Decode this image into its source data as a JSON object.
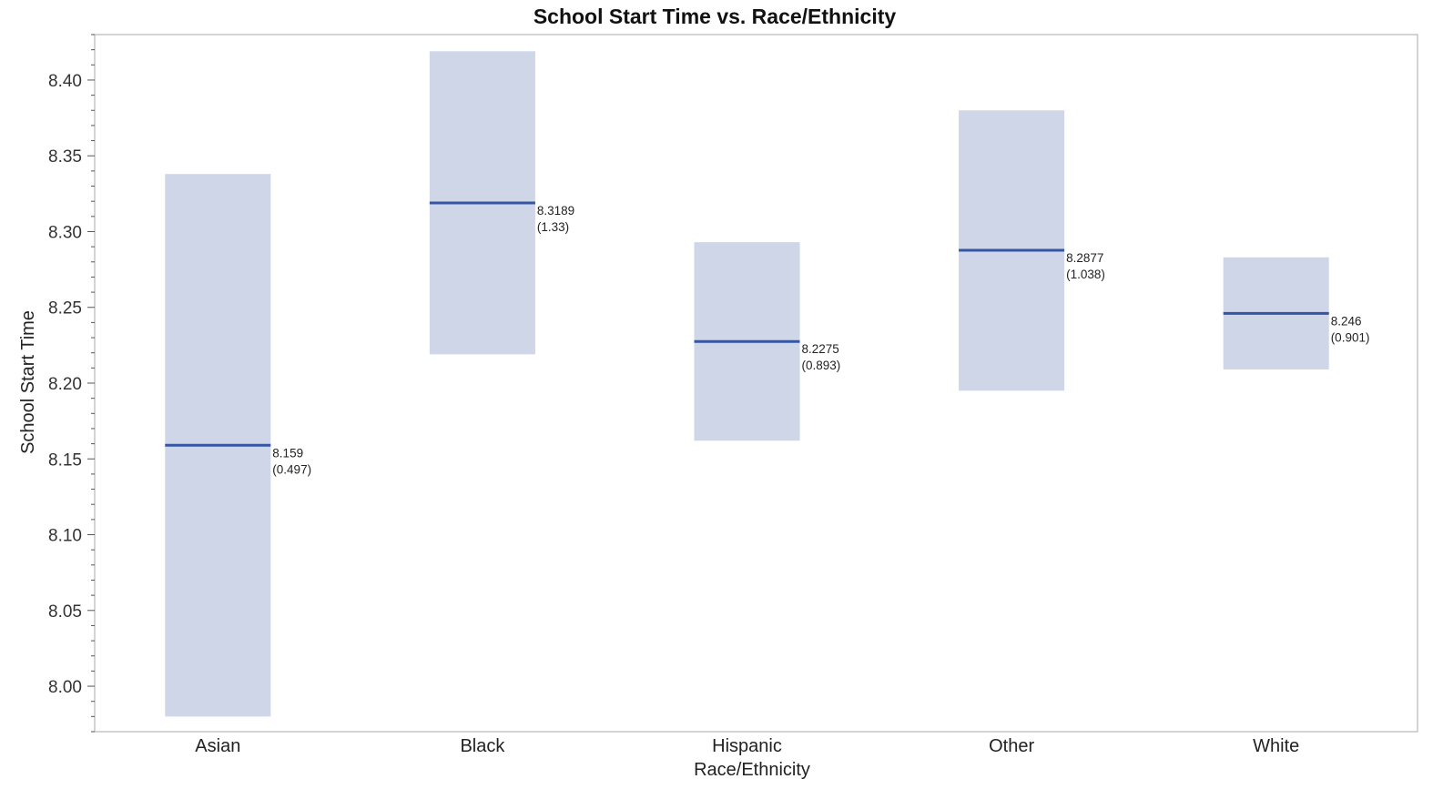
{
  "colors": {
    "range_fill": "#ced6e8",
    "mean_line": "#3556a6",
    "frame": "#b8b8b8",
    "tick": "#555555"
  },
  "chart_data": {
    "type": "bar",
    "title": "School Start Time vs. Race/Ethnicity",
    "xlabel": "Race/Ethnicity",
    "ylabel": "School Start Time",
    "ylim": [
      7.97,
      8.43
    ],
    "yticks": [
      "8.00",
      "8.05",
      "8.10",
      "8.15",
      "8.20",
      "8.25",
      "8.30",
      "8.35",
      "8.40"
    ],
    "grid": false,
    "categories": [
      "Asian",
      "Black",
      "Hispanic",
      "Other",
      "White"
    ],
    "mean": [
      8.159,
      8.3189,
      8.2275,
      8.2877,
      8.246
    ],
    "range_low": [
      7.98,
      8.219,
      8.162,
      8.195,
      8.209
    ],
    "range_high": [
      8.338,
      8.419,
      8.293,
      8.38,
      8.283
    ],
    "mean_labels": [
      "8.159",
      "8.3189",
      "8.2275",
      "8.2877",
      "8.246"
    ],
    "sd_labels": [
      "(0.497)",
      "(1.33)",
      "(0.893)",
      "(1.038)",
      "(0.901)"
    ]
  }
}
